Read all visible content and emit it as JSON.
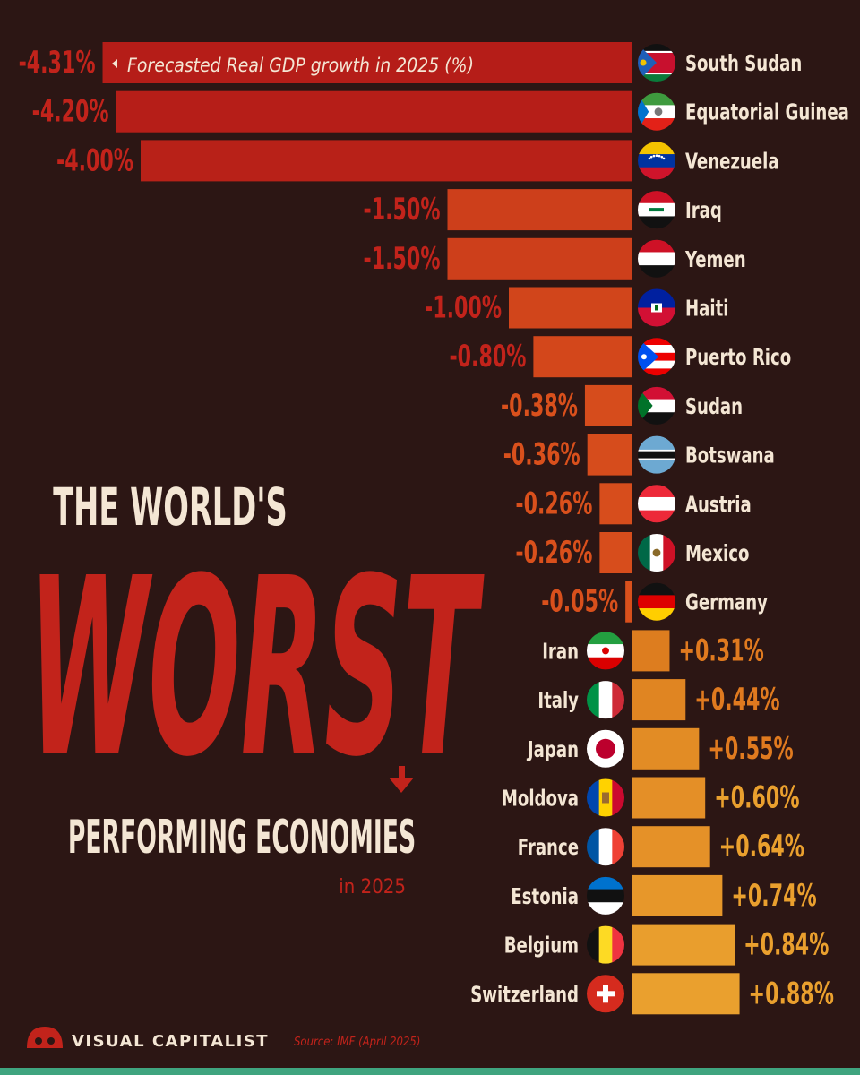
{
  "headline": {
    "line1": "THE WORLD'S",
    "line2": "WORST",
    "line3": "PERFORMING ECONOMIES",
    "line4": "in 2025"
  },
  "legend_note": "Forecasted Real GDP growth in 2025 (%)",
  "footer": {
    "brand": "VISUAL CAPITALIST",
    "source": "Source: IMF (April 2025)"
  },
  "colors": {
    "background": "#2c1614",
    "negative_dark": "#b51d18",
    "negative_light": "#d9501c",
    "positive_light": "#dd7d1f",
    "positive_dark": "#eaa02e",
    "text_light": "#f4e6d4",
    "accent_green": "#3fa47f"
  },
  "chart_data": {
    "type": "bar",
    "orientation": "horizontal",
    "title": "",
    "xlabel": "Forecasted Real GDP growth in 2025 (%)",
    "ylabel": "",
    "categories": [
      "South Sudan",
      "Equatorial Guinea",
      "Venezuela",
      "Iraq",
      "Yemen",
      "Haiti",
      "Puerto Rico",
      "Sudan",
      "Botswana",
      "Austria",
      "Mexico",
      "Germany",
      "Iran",
      "Italy",
      "Japan",
      "Moldova",
      "France",
      "Estonia",
      "Belgium",
      "Switzerland"
    ],
    "values": [
      -4.31,
      -4.2,
      -4.0,
      -1.5,
      -1.5,
      -1.0,
      -0.8,
      -0.38,
      -0.36,
      -0.26,
      -0.26,
      -0.05,
      0.31,
      0.44,
      0.55,
      0.6,
      0.64,
      0.74,
      0.84,
      0.88
    ],
    "value_labels": [
      "-4.31%",
      "-4.20%",
      "-4.00%",
      "-1.50%",
      "-1.50%",
      "-1.00%",
      "-0.80%",
      "-0.38%",
      "-0.36%",
      "-0.26%",
      "-0.26%",
      "-0.05%",
      "+0.31%",
      "+0.44%",
      "+0.55%",
      "+0.60%",
      "+0.64%",
      "+0.74%",
      "+0.84%",
      "+0.88%"
    ],
    "flags": [
      "south-sudan-flag-icon",
      "equatorial-guinea-flag-icon",
      "venezuela-flag-icon",
      "iraq-flag-icon",
      "yemen-flag-icon",
      "haiti-flag-icon",
      "puerto-rico-flag-icon",
      "sudan-flag-icon",
      "botswana-flag-icon",
      "austria-flag-icon",
      "mexico-flag-icon",
      "germany-flag-icon",
      "iran-flag-icon",
      "italy-flag-icon",
      "japan-flag-icon",
      "moldova-flag-icon",
      "france-flag-icon",
      "estonia-flag-icon",
      "belgium-flag-icon",
      "switzerland-flag-icon"
    ],
    "xlim": [
      -4.31,
      0.88
    ],
    "grid": false,
    "legend": false
  }
}
